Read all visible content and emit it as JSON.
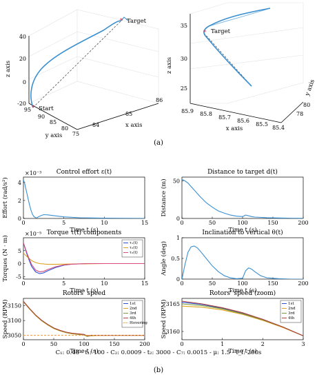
{
  "panel_labels": {
    "a": "(a)",
    "b": "(b)"
  },
  "caption": "C₁: 0.48 - t₁: 100 - C₂: 0.0009 - t₂: 3000 - C₇: 0.0015 - μ: 1.5 - t_f: 200s",
  "chart_data": [
    {
      "type": "line3d",
      "panel": "a-left",
      "xlabel": "x axis",
      "ylabel": "y axis",
      "zlabel": "z axis",
      "x_ticks": [
        "84",
        "85",
        "86"
      ],
      "y_ticks": [
        "95",
        "90",
        "85",
        "80",
        "75"
      ],
      "z_ticks": [
        "-20",
        "0",
        "20",
        "40"
      ],
      "annotations": [
        "Start",
        "Target"
      ],
      "colors": {
        "trajectory": "#3a8fd0",
        "reference": "#555555",
        "marker": "#d9304a"
      }
    },
    {
      "type": "line3d",
      "panel": "a-right",
      "xlabel": "x axis",
      "ylabel": "y axis",
      "zlabel": "z axis",
      "x_ticks": [
        "85.9",
        "85.8",
        "85.7",
        "85.6",
        "85.5",
        "85.4"
      ],
      "y_ticks": [
        "78",
        "80"
      ],
      "z_ticks": [
        "25",
        "30",
        "35"
      ],
      "annotations": [
        "Target"
      ],
      "colors": {
        "trajectory": "#3a8fd0",
        "reference": "#555555",
        "marker": "#d9304a"
      }
    },
    {
      "type": "line",
      "panel": "b1",
      "title": "Control effort ε(t)",
      "xlabel": "Time t (s)",
      "ylabel": "Effort (rad/s²)",
      "exponent": "×10⁻³",
      "xlim": [
        0,
        15
      ],
      "ylim": [
        0,
        4.6
      ],
      "x_ticks": [
        0,
        5,
        10,
        15
      ],
      "y_ticks": [
        0,
        2,
        4
      ],
      "series": [
        {
          "color": "#3a8fd0",
          "x": [
            0,
            0.15,
            0.3,
            0.5,
            0.7,
            0.9,
            1.1,
            1.3,
            1.6,
            2.0,
            2.5,
            3.0,
            4,
            5,
            7,
            10,
            15
          ],
          "y": [
            4.3,
            3.9,
            3.3,
            2.5,
            1.7,
            1.0,
            0.5,
            0.2,
            0.05,
            0.25,
            0.42,
            0.4,
            0.28,
            0.18,
            0.08,
            0.03,
            0.01
          ]
        }
      ]
    },
    {
      "type": "line",
      "panel": "b2",
      "title": "Distance to target d(t)",
      "xlabel": "Time t (s)",
      "ylabel": "Distance (m)",
      "xlim": [
        0,
        200
      ],
      "ylim": [
        0,
        55
      ],
      "x_ticks": [
        0,
        50,
        100,
        150,
        200
      ],
      "y_ticks": [
        0,
        50
      ],
      "series": [
        {
          "color": "#3a8fd0",
          "x": [
            0,
            5,
            10,
            20,
            30,
            40,
            50,
            60,
            70,
            80,
            90,
            100,
            105,
            110,
            115,
            120,
            140,
            160,
            180,
            200
          ],
          "y": [
            52,
            50,
            47,
            38,
            29,
            21,
            15,
            10,
            7,
            4.5,
            3,
            2.5,
            4.5,
            3.5,
            2.5,
            1.8,
            1.0,
            0.6,
            0.3,
            0.2
          ]
        }
      ]
    },
    {
      "type": "line",
      "panel": "b3",
      "title": "Torque τ(t) components",
      "xlabel": "Time t (s)",
      "ylabel": "Torques (N · m)",
      "exponent": "×10⁻⁵",
      "xlim": [
        0,
        15
      ],
      "ylim": [
        -6,
        10
      ],
      "x_ticks": [
        0,
        5,
        10,
        15
      ],
      "y_ticks": [
        -5,
        0,
        5
      ],
      "legend": [
        "τ₁(t)",
        "τ₂(t)",
        "τ₃(t)"
      ],
      "legend_position": "top-right",
      "series": [
        {
          "name": "τ₁(t)",
          "color": "#2c4fd8",
          "x": [
            0,
            0.5,
            1,
            1.5,
            2,
            2.5,
            3,
            4,
            5,
            6,
            8,
            10,
            15
          ],
          "y": [
            8,
            3,
            -1,
            -3.2,
            -3.9,
            -3.6,
            -2.8,
            -1.5,
            -0.6,
            -0.2,
            0,
            0,
            0
          ]
        },
        {
          "name": "τ₂(t)",
          "color": "#e0a11b",
          "x": [
            0,
            0.5,
            1,
            1.5,
            2,
            3,
            4,
            5,
            7,
            10,
            15
          ],
          "y": [
            4,
            2.5,
            1.2,
            0.4,
            0,
            -0.3,
            -0.3,
            -0.2,
            -0.1,
            0,
            0
          ]
        },
        {
          "name": "τ₃(t)",
          "color": "#d94a7a",
          "x": [
            0,
            0.5,
            1,
            1.5,
            2,
            2.5,
            3,
            4,
            5,
            6,
            8,
            10,
            15
          ],
          "y": [
            8,
            3.5,
            -0.3,
            -2.5,
            -3.2,
            -3.0,
            -2.3,
            -1.2,
            -0.5,
            -0.2,
            0,
            0,
            0
          ]
        }
      ]
    },
    {
      "type": "line",
      "panel": "b4",
      "title": "Inclination to vertical θ(t)",
      "xlabel": "Time t (s)",
      "ylabel": "Angle (deg)",
      "xlim": [
        0,
        200
      ],
      "ylim": [
        0,
        1
      ],
      "x_ticks": [
        0,
        50,
        100,
        150,
        200
      ],
      "y_ticks": [
        0,
        0.5,
        1
      ],
      "series": [
        {
          "color": "#3a8fd0",
          "x": [
            0,
            5,
            10,
            15,
            20,
            25,
            30,
            40,
            50,
            60,
            70,
            80,
            90,
            100,
            105,
            110,
            115,
            120,
            130,
            140,
            160,
            180,
            200
          ],
          "y": [
            0,
            0.35,
            0.65,
            0.78,
            0.8,
            0.76,
            0.68,
            0.5,
            0.32,
            0.18,
            0.08,
            0.03,
            0.01,
            0.02,
            0.2,
            0.27,
            0.24,
            0.18,
            0.08,
            0.03,
            0.01,
            0,
            0
          ]
        }
      ]
    },
    {
      "type": "line",
      "panel": "b5",
      "title": "Rotors' speed",
      "xlabel": "Time t (s)",
      "ylabel": "Speed (RPM)",
      "xlim": [
        0,
        200
      ],
      "ylim": [
        3035,
        3175
      ],
      "x_ticks": [
        0,
        50,
        100,
        150,
        200
      ],
      "y_ticks": [
        3050,
        3100,
        3150
      ],
      "legend": [
        "1st",
        "2nd",
        "3rd",
        "4th",
        "Hovering"
      ],
      "legend_position": "top-right",
      "series": [
        {
          "name": "1st",
          "color": "#2c4fd8",
          "x": [
            0,
            10,
            20,
            30,
            40,
            50,
            60,
            70,
            80,
            90,
            100,
            105,
            110,
            120,
            140,
            160,
            180,
            200
          ],
          "y": [
            3165,
            3140,
            3118,
            3100,
            3086,
            3074,
            3066,
            3060,
            3056,
            3054,
            3052,
            3047,
            3049,
            3050,
            3050,
            3050,
            3050,
            3050
          ]
        },
        {
          "name": "2nd",
          "color": "#e0a11b",
          "x": [
            0,
            10,
            20,
            30,
            40,
            50,
            60,
            70,
            80,
            90,
            100,
            105,
            110,
            120,
            140,
            160,
            180,
            200
          ],
          "y": [
            3163,
            3139,
            3117,
            3099,
            3085,
            3073,
            3065,
            3059,
            3055,
            3053,
            3051,
            3046,
            3048,
            3049,
            3050,
            3050,
            3050,
            3050
          ]
        },
        {
          "name": "3rd",
          "color": "#7a9a3a",
          "x": [
            0,
            10,
            20,
            30,
            40,
            50,
            60,
            70,
            80,
            90,
            100,
            105,
            110,
            120,
            140,
            160,
            180,
            200
          ],
          "y": [
            3164,
            3140,
            3118,
            3100,
            3086,
            3074,
            3066,
            3060,
            3056,
            3054,
            3052,
            3047,
            3049,
            3050,
            3050,
            3050,
            3050,
            3050
          ]
        },
        {
          "name": "4th",
          "color": "#b0443a",
          "x": [
            0,
            10,
            20,
            30,
            40,
            50,
            60,
            70,
            80,
            90,
            100,
            105,
            110,
            120,
            140,
            160,
            180,
            200
          ],
          "y": [
            3165,
            3141,
            3119,
            3101,
            3087,
            3075,
            3067,
            3061,
            3057,
            3055,
            3053,
            3048,
            3050,
            3050,
            3050,
            3050,
            3050,
            3050
          ]
        },
        {
          "name": "Hovering",
          "color": "#f0a040",
          "dashed": true,
          "x": [
            0,
            200
          ],
          "y": [
            3050,
            3050
          ]
        }
      ]
    },
    {
      "type": "line",
      "panel": "b6",
      "title": "Rotors' speed (zoom)",
      "xlabel": "Time t (s)",
      "ylabel": "Speed (RPM)",
      "xlim": [
        0,
        3
      ],
      "ylim": [
        3158.5,
        3166
      ],
      "x_ticks": [
        0,
        1,
        2,
        3
      ],
      "y_ticks": [
        3160,
        3165
      ],
      "legend": [
        "1st",
        "2nd",
        "3rd",
        "4th"
      ],
      "legend_position": "top-right",
      "series": [
        {
          "name": "1st",
          "color": "#2c4fd8",
          "x": [
            0,
            0.5,
            1,
            1.5,
            2,
            2.5,
            3
          ],
          "y": [
            3165.3,
            3164.9,
            3164.2,
            3163.3,
            3162.2,
            3160.8,
            3159.2
          ]
        },
        {
          "name": "2nd",
          "color": "#e0a11b",
          "x": [
            0,
            0.5,
            1,
            1.5,
            2,
            2.5,
            3
          ],
          "y": [
            3164.6,
            3164.4,
            3163.9,
            3163.1,
            3162.0,
            3160.7,
            3159.2
          ]
        },
        {
          "name": "3rd",
          "color": "#7a9a3a",
          "x": [
            0,
            0.5,
            1,
            1.5,
            2,
            2.5,
            3
          ],
          "y": [
            3165.0,
            3164.7,
            3164.1,
            3163.2,
            3162.1,
            3160.8,
            3159.2
          ]
        },
        {
          "name": "4th",
          "color": "#b0443a",
          "x": [
            0,
            0.5,
            1,
            1.5,
            2,
            2.5,
            3
          ],
          "y": [
            3165.5,
            3165.0,
            3164.3,
            3163.4,
            3162.2,
            3160.8,
            3159.2
          ]
        }
      ]
    }
  ]
}
